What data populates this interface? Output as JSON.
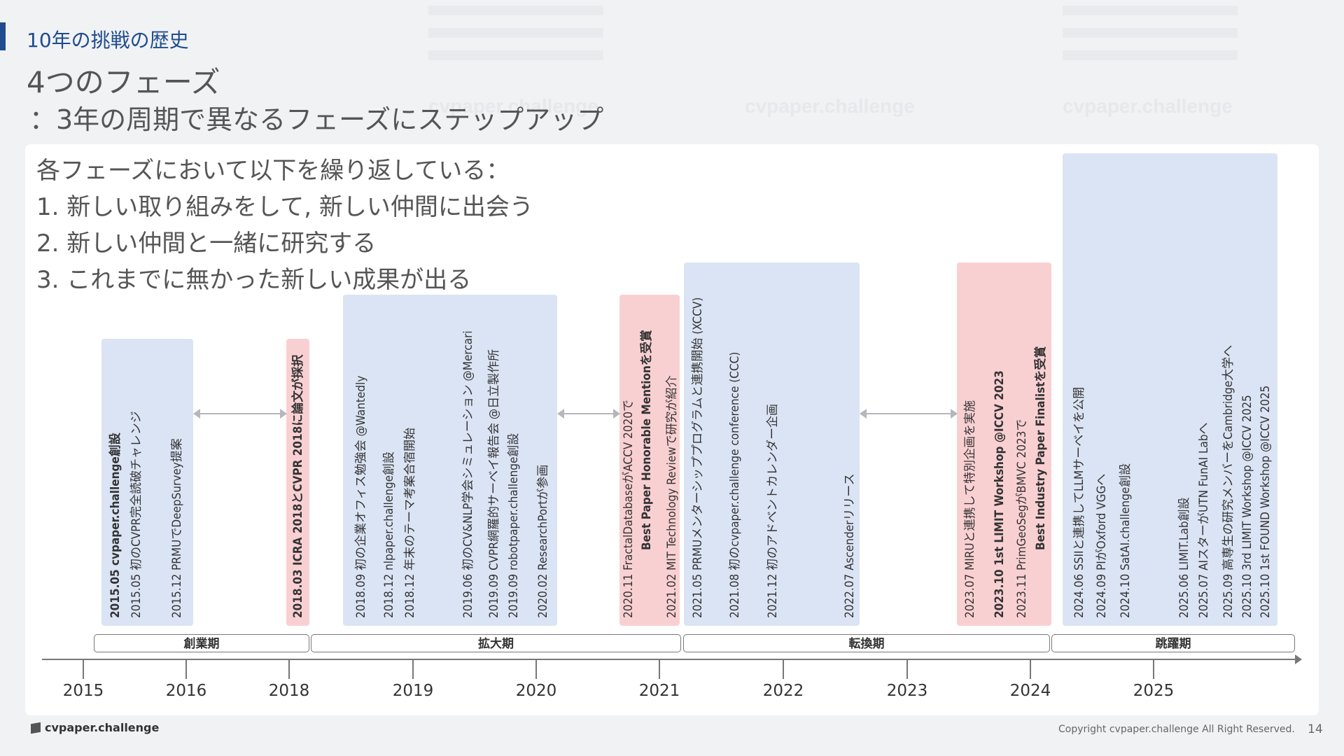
{
  "header": {
    "section_title": "10年の挑戦の歴史",
    "main_title": "4つのフェーズ",
    "subtitle": "：3年の周期で異なるフェーズにステップアップ"
  },
  "intro": [
    "各フェーズにおいて以下を繰り返している：",
    "1.  新しい取り組みをして, 新しい仲間に出会う",
    "2.  新しい仲間と一緒に研究する",
    "3.  これまでに無かった新しい成果が出る"
  ],
  "events": {
    "g1": [
      "2015.05   cvpaper.challenge創設",
      "2015.05   初のCVPR完全読破チャレンジ",
      "2015.12   PRMUでDeepSurvey提案"
    ],
    "g2": [
      "2018.03   ICRA 2018とCVPR 2018に論文が採択"
    ],
    "g3": [
      "2018.09   初の企業オフィス勉強会 @Wantedly",
      "2018.12   nlpaper.challenge創設",
      "2018.12   年末のテーマ考案合宿開始",
      "2019.06   初のCV&NLP学会シミュレーション @Mercari",
      "2019.09   CVPR網羅的サーベイ報告会 @日立製作所",
      "2019.09   robotpaper.challenge創設",
      "2020.02   ResearchPortが参画"
    ],
    "g4": [
      "2020.11   FractalDatabaseがACCV 2020で",
      "Best Paper Honorable Mentionを受賞",
      "2021.02   MIT Technology Reviewで研究が紹介"
    ],
    "g5": [
      "2021.05   PRMUメンターシッププログラムと連携開始 (XCCV)",
      "2021.08   初のcvpaper.challenge conference (CCC)",
      "2021.12   初のアドベントカレンダー企画",
      "2022.07   Ascenderリリース"
    ],
    "g6": [
      "2023.07   MIRUと連携して特別企画を実施",
      "2023.10   1st LIMIT Workshop @ICCV 2023",
      "2023.11   PrimGeoSegがBMVC 2023で",
      "Best Industry Paper Finalistを受賞"
    ],
    "g7": [
      "2024.06   SSIIと連携してLLMサーベイを公開",
      "2024.09   PIがOxford VGGへ",
      "2024.10   SatAI.challenge創設",
      "2025.06   LIMIT.Lab創設",
      "2025.07   AIスターがUTN FunAI Labへ",
      "2025.09   高専生の研究メンバーをCambridge大学へ",
      "2025.10   3rd LIMIT Workshop @ICCV 2025",
      "2025.10   1st FOUND Workshop @ICCV 2025"
    ]
  },
  "phases": [
    "創業期",
    "拡大期",
    "転換期",
    "跳躍期"
  ],
  "years": [
    "2015",
    "2016",
    "2018",
    "2019",
    "2020",
    "2021",
    "2022",
    "2023",
    "2024",
    "2025"
  ],
  "footer": {
    "logo": "cvpaper.challenge",
    "copyright": "Copyright cvpaper.challenge All Right Reserved.",
    "page": "14"
  },
  "colors": {
    "accent": "#1f4c8f",
    "blue_block": "#dbe4f4",
    "pink_block": "#f9d0d2"
  }
}
